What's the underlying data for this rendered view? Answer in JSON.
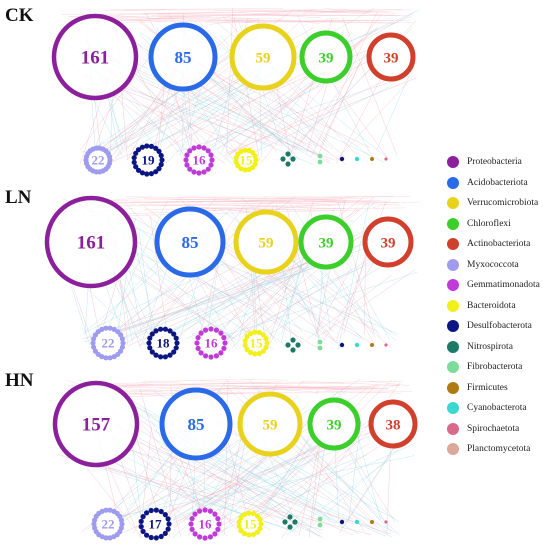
{
  "panels": [
    {
      "label": "CK",
      "top_row": [
        {
          "phylum": "Proteobacteria",
          "count": "161"
        },
        {
          "phylum": "Acidobacteriota",
          "count": "85"
        },
        {
          "phylum": "Verrucomicrobiota",
          "count": "59"
        },
        {
          "phylum": "Chloroflexi",
          "count": "39"
        },
        {
          "phylum": "Actinobacteriota",
          "count": "39"
        }
      ],
      "bottom_row": [
        {
          "phylum": "Myxococcota",
          "count": "22"
        },
        {
          "phylum": "Desulfobacterota",
          "count": "19"
        },
        {
          "phylum": "Gemmatimonadota",
          "count": "16"
        },
        {
          "phylum": "Bacteroidota",
          "count": "15"
        }
      ]
    },
    {
      "label": "LN",
      "top_row": [
        {
          "phylum": "Proteobacteria",
          "count": "161"
        },
        {
          "phylum": "Acidobacteriota",
          "count": "85"
        },
        {
          "phylum": "Verrucomicrobiota",
          "count": "59"
        },
        {
          "phylum": "Chloroflexi",
          "count": "39"
        },
        {
          "phylum": "Actinobacteriota",
          "count": "39"
        }
      ],
      "bottom_row": [
        {
          "phylum": "Myxococcota",
          "count": "22"
        },
        {
          "phylum": "Desulfobacterota",
          "count": "18"
        },
        {
          "phylum": "Gemmatimonadota",
          "count": "16"
        },
        {
          "phylum": "Bacteroidota",
          "count": "15"
        }
      ]
    },
    {
      "label": "HN",
      "top_row": [
        {
          "phylum": "Proteobacteria",
          "count": "157"
        },
        {
          "phylum": "Acidobacteriota",
          "count": "85"
        },
        {
          "phylum": "Verrucomicrobiota",
          "count": "59"
        },
        {
          "phylum": "Chloroflexi",
          "count": "39"
        },
        {
          "phylum": "Actinobacteriota",
          "count": "38"
        }
      ],
      "bottom_row": [
        {
          "phylum": "Myxococcota",
          "count": "22"
        },
        {
          "phylum": "Desulfobacterota",
          "count": "17"
        },
        {
          "phylum": "Gemmatimonadota",
          "count": "16"
        },
        {
          "phylum": "Bacteroidota",
          "count": "15"
        }
      ]
    }
  ],
  "legend": [
    {
      "name": "Proteobacteria",
      "color": "#8b1f9c"
    },
    {
      "name": "Acidobacteriota",
      "color": "#2a6ae8"
    },
    {
      "name": "Verrucomicrobiota",
      "color": "#e8d21c"
    },
    {
      "name": "Chloroflexi",
      "color": "#3ccf2c"
    },
    {
      "name": "Actinobacteriota",
      "color": "#d0402c"
    },
    {
      "name": "Myxococcota",
      "color": "#9f9cf0"
    },
    {
      "name": "Gemmatimonadota",
      "color": "#c03ad8"
    },
    {
      "name": "Bacteroidota",
      "color": "#f2f01a"
    },
    {
      "name": "Desulfobacterota",
      "color": "#0c1683"
    },
    {
      "name": "Nitrospirota",
      "color": "#1d7a66"
    },
    {
      "name": "Fibrobacterota",
      "color": "#7ddc9c"
    },
    {
      "name": "Firmicutes",
      "color": "#b07a12"
    },
    {
      "name": "Cyanobacterota",
      "color": "#3ad8d0"
    },
    {
      "name": "Spirochaetota",
      "color": "#d86a8c"
    },
    {
      "name": "Planctomycetota",
      "color": "#dca89a"
    }
  ],
  "edge_colors": {
    "positive": "#f2a0b0",
    "negative": "#8cd6e6"
  }
}
